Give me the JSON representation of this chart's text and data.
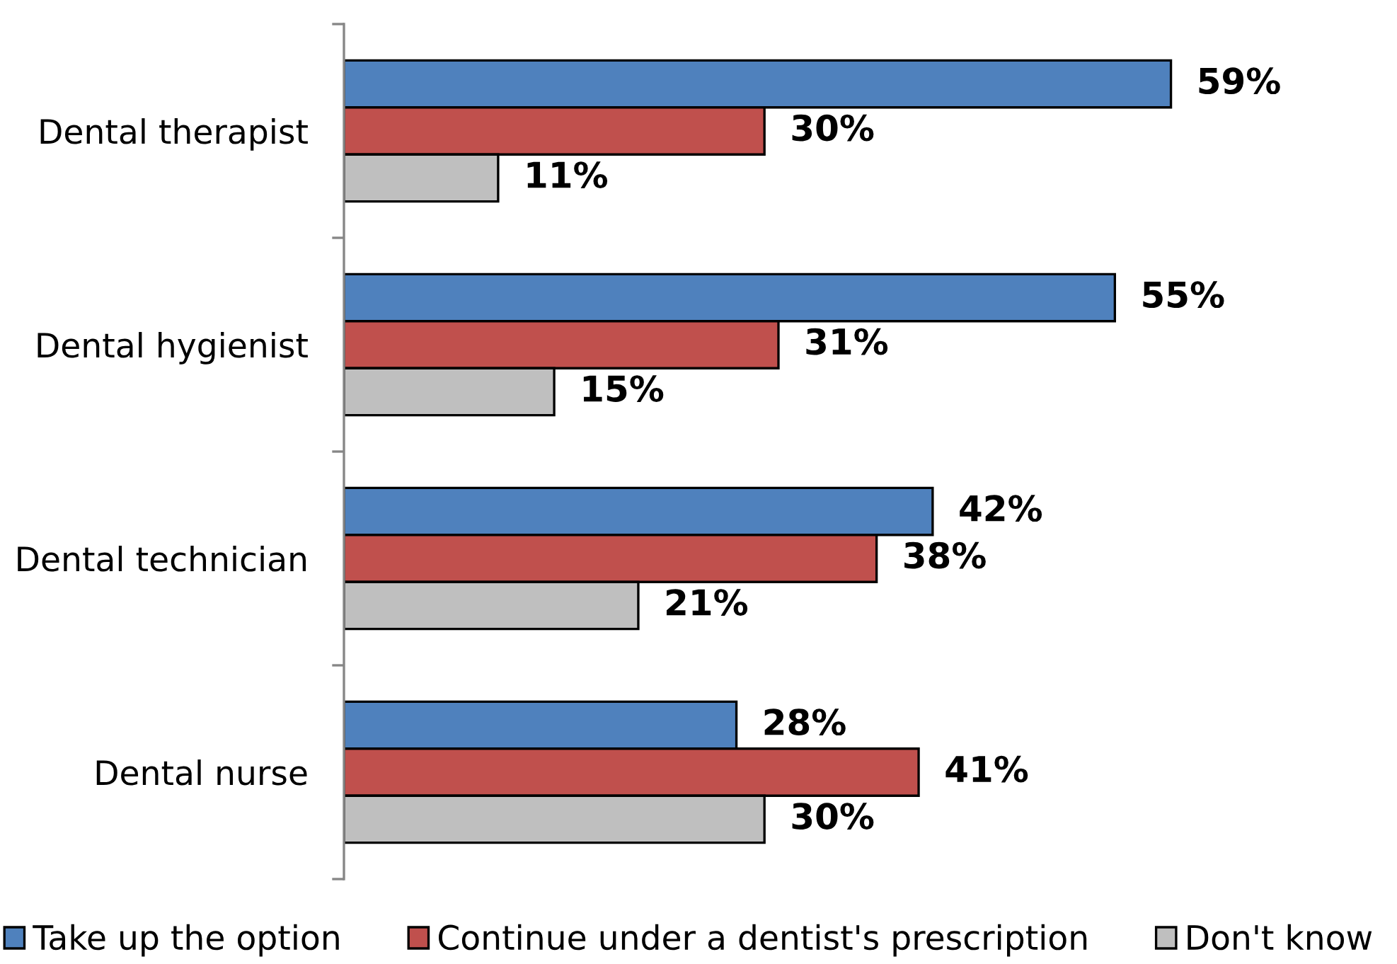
{
  "chart_data": {
    "type": "bar",
    "orientation": "horizontal",
    "legend": "bottom",
    "categories": [
      "Dental therapist",
      "Dental hygienist",
      "Dental technician",
      "Dental nurse"
    ],
    "series": [
      {
        "name": "Take up the option",
        "color": "#4f81bd",
        "values": [
          59,
          55,
          42,
          28
        ],
        "value_labels": [
          "59%",
          "55%",
          "42%",
          "28%"
        ]
      },
      {
        "name": "Continue under a dentist's prescription",
        "color": "#c0504d",
        "values": [
          30,
          31,
          38,
          41
        ],
        "value_labels": [
          "30%",
          "31%",
          "38%",
          "41%"
        ]
      },
      {
        "name": "Don't know",
        "color": "#bfbfbf",
        "values": [
          11,
          15,
          21,
          30
        ],
        "value_labels": [
          "11%",
          "15%",
          "21%",
          "30%"
        ]
      }
    ]
  }
}
